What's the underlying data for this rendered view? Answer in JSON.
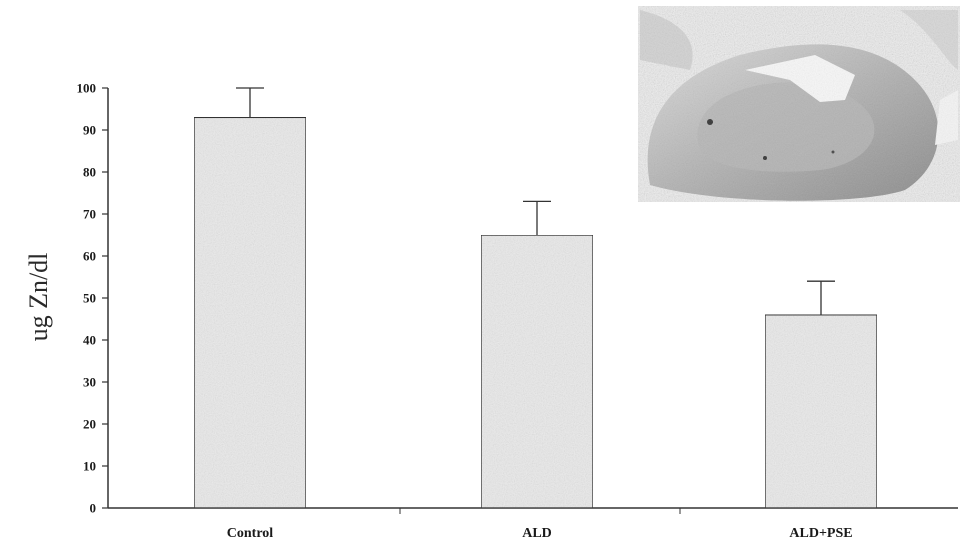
{
  "chart_data": {
    "type": "bar",
    "categories": [
      "Control",
      "ALD",
      "ALD+PSE"
    ],
    "values": [
      93,
      65,
      46
    ],
    "error_upper": [
      100,
      73,
      54
    ],
    "title": "",
    "xlabel": "",
    "ylabel": "ug Zn/dl",
    "ylim": [
      0,
      100
    ],
    "yticks": [
      0,
      10,
      20,
      30,
      40,
      50,
      60,
      70,
      80,
      90,
      100
    ],
    "grid": false,
    "bar_color": "#ececec",
    "bar_stroke": "#333333"
  }
}
